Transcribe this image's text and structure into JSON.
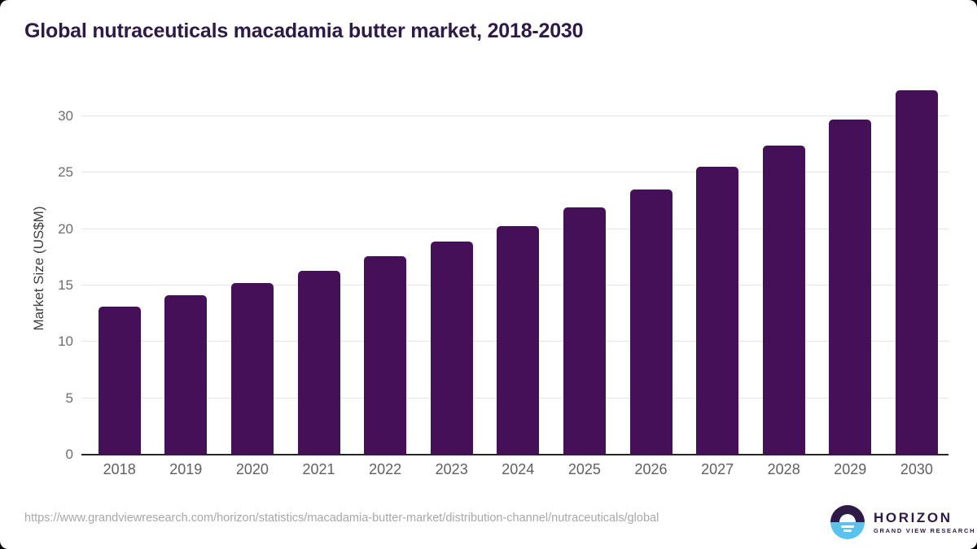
{
  "chart_data": {
    "type": "bar",
    "title": "Global nutraceuticals macadamia butter market, 2018-2030",
    "categories": [
      "2018",
      "2019",
      "2020",
      "2021",
      "2022",
      "2023",
      "2024",
      "2025",
      "2026",
      "2027",
      "2028",
      "2029",
      "2030"
    ],
    "values": [
      13.1,
      14.1,
      15.2,
      16.3,
      17.6,
      18.9,
      20.3,
      21.9,
      23.5,
      25.5,
      27.4,
      29.7,
      32.3
    ],
    "xlabel": "",
    "ylabel": "Market Size (US$M)",
    "ylim": [
      0,
      33.1
    ],
    "yticks": [
      0,
      5,
      10,
      15,
      20,
      25,
      30
    ],
    "grid": true,
    "legend": "none",
    "bar_color": "#461059"
  },
  "footer": {
    "source_url": "https://www.grandviewresearch.com/horizon/statistics/macadamia-butter-market/distribution-channel/nutraceuticals/global",
    "logo": {
      "name": "HORIZON",
      "subtitle": "GRAND VIEW RESEARCH"
    }
  },
  "colors": {
    "bar": "#461059",
    "title_text": "#2e1a47",
    "gridline": "#e6e6e6",
    "axis_line": "#262626",
    "tick_text": "#6e6e6e",
    "url_text": "#a8a8a8",
    "logo_purple": "#2e1a47",
    "logo_blue": "#5bc2ee"
  }
}
